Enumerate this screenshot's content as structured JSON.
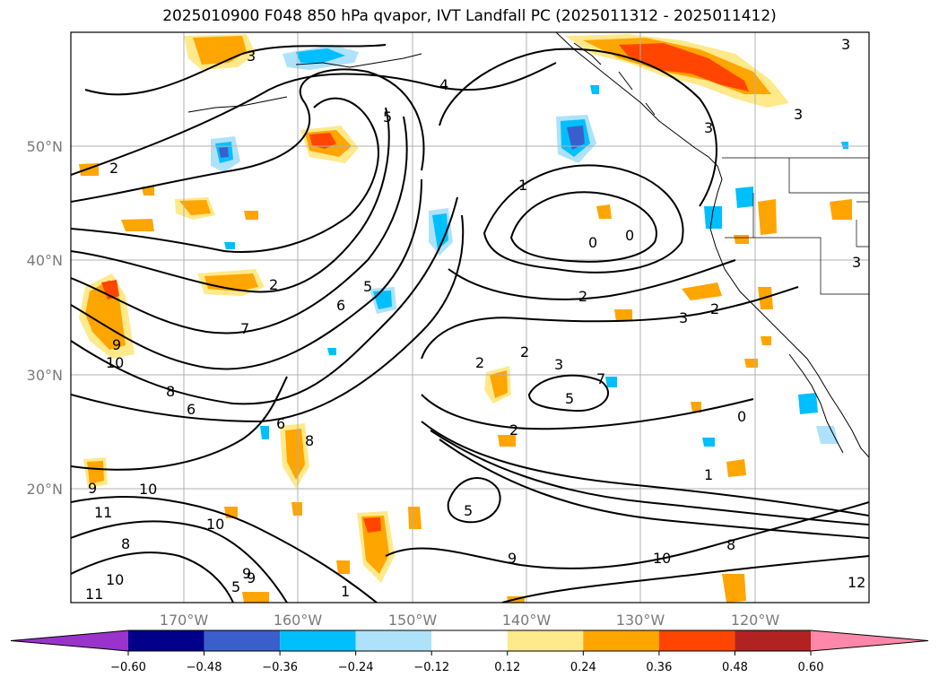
{
  "title": "2025010900 F048 850 hPa qvapor, IVT Landfall PC (2025011312 - 2025011412)",
  "lon_ticks": [
    "170°W",
    "160°W",
    "150°W",
    "140°W",
    "130°W",
    "120°W"
  ],
  "lat_ticks": [
    "50°N",
    "40°N",
    "30°N",
    "20°N"
  ],
  "colorbar": {
    "colors": [
      "#9933cc",
      "#00008b",
      "#3a5fcd",
      "#00bfff",
      "#aee2fb",
      "#ffffff",
      "#ffe98a",
      "#ffa500",
      "#ff4500",
      "#b22222",
      "#ff88aa"
    ],
    "tick_labels": [
      "−0.60",
      "−0.48",
      "−0.36",
      "−0.24",
      "−0.12",
      "0.12",
      "0.24",
      "0.36",
      "0.48",
      "0.60"
    ]
  },
  "contour_labels": [
    "3",
    "4",
    "5",
    "2",
    "1",
    "0",
    "0",
    "2",
    "2",
    "3",
    "7",
    "6",
    "5",
    "5",
    "8",
    "6",
    "7",
    "2",
    "2",
    "3",
    "5",
    "2",
    "1",
    "8",
    "9",
    "10",
    "10",
    "10",
    "11",
    "9",
    "8",
    "10",
    "9",
    "11",
    "5",
    "9",
    "10",
    "8",
    "9",
    "1",
    "0",
    "12",
    "3",
    "3",
    "3",
    "3",
    "2",
    "6"
  ]
}
